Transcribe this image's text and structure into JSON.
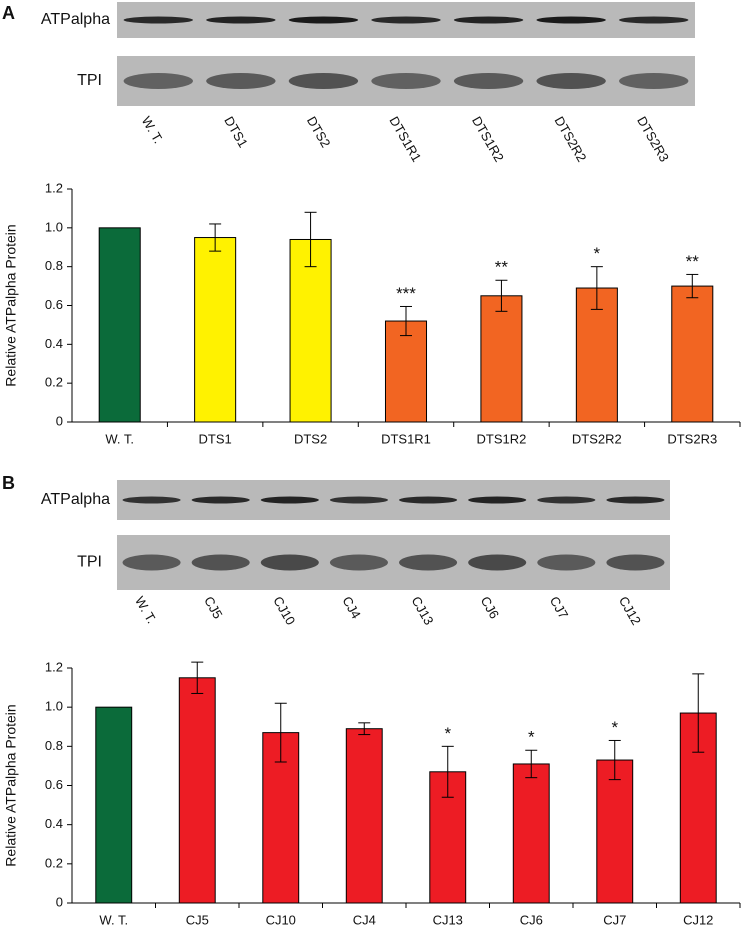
{
  "blots": [
    {
      "panel": "A",
      "rows": [
        "ATPalpha",
        "TPI"
      ],
      "lanes": [
        "W. T.",
        "DTS1",
        "DTS2",
        "DTS1R1",
        "DTS1R2",
        "DTS2R2",
        "DTS2R3"
      ]
    },
    {
      "panel": "B",
      "rows": [
        "ATPalpha",
        "TPI"
      ],
      "lanes": [
        "W. T.",
        "CJ5",
        "CJ10",
        "CJ4",
        "CJ13",
        "CJ6",
        "CJ7",
        "CJ12"
      ]
    }
  ],
  "chart_data": [
    {
      "type": "bar",
      "y_label": "Relative ATPalpha Protein",
      "categories": [
        "W. T.",
        "DTS1",
        "DTS2",
        "DTS1R1",
        "DTS1R2",
        "DTS2R2",
        "DTS2R3"
      ],
      "values": [
        1,
        0.95,
        0.94,
        0.52,
        0.65,
        0.69,
        0.7
      ],
      "errors": [
        0,
        0.07,
        0.14,
        0.075,
        0.08,
        0.11,
        0.06
      ],
      "colors": [
        "#0b6b3a",
        "#fff200",
        "#fff200",
        "#f26522",
        "#f26522",
        "#f26522",
        "#f26522"
      ],
      "annotations": [
        null,
        null,
        null,
        "***",
        "**",
        "*",
        "**"
      ],
      "ylim": [
        0,
        1.2
      ],
      "yticks": [
        0,
        0.2,
        0.4,
        0.6,
        0.8,
        {
          "value": 1,
          "label": "1.0"
        },
        1.2
      ]
    },
    {
      "type": "bar",
      "y_label": "Relative ATPalpha Protein",
      "categories": [
        "W. T.",
        "CJ5",
        "CJ10",
        "CJ4",
        "CJ13",
        "CJ6",
        "CJ7",
        "CJ12"
      ],
      "values": [
        1,
        1.15,
        0.87,
        0.89,
        0.67,
        0.71,
        0.73,
        0.97
      ],
      "errors": [
        0,
        0.08,
        0.15,
        0.03,
        0.13,
        0.07,
        0.1,
        0.2
      ],
      "colors": [
        "#0b6b3a",
        "#ed1c24",
        "#ed1c24",
        "#ed1c24",
        "#ed1c24",
        "#ed1c24",
        "#ed1c24",
        "#ed1c24"
      ],
      "annotations": [
        null,
        null,
        null,
        null,
        "*",
        "*",
        "*",
        null
      ],
      "ylim": [
        0,
        1.2
      ],
      "yticks": [
        0,
        0.2,
        0.4,
        0.6,
        0.8,
        {
          "value": 1,
          "label": "1.0"
        },
        1.2
      ]
    }
  ]
}
